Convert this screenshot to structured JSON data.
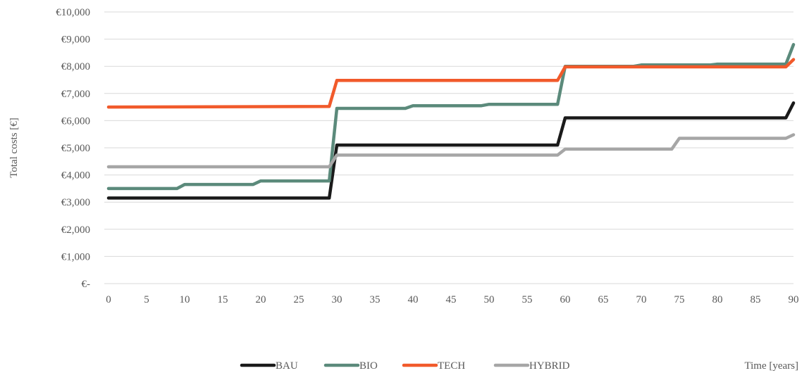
{
  "chart_data": {
    "type": "line",
    "ylabel": "Total costs [€]",
    "xlabel": "Time [years]",
    "xlim": [
      0,
      90
    ],
    "ylim": [
      0,
      10000
    ],
    "grid": true,
    "legend_position": "bottom",
    "x_ticks": [
      "0",
      "5",
      "10",
      "15",
      "20",
      "25",
      "30",
      "35",
      "40",
      "45",
      "50",
      "55",
      "60",
      "65",
      "70",
      "75",
      "80",
      "85",
      "90"
    ],
    "y_ticks": [
      "€-",
      "€1,000",
      "€2,000",
      "€3,000",
      "€4,000",
      "€5,000",
      "€6,000",
      "€7,000",
      "€8,000",
      "€9,000",
      "€10,000"
    ],
    "series": [
      {
        "name": "BAU",
        "color": "#1a1a1a",
        "points": [
          [
            0,
            3150
          ],
          [
            29,
            3150
          ],
          [
            30,
            5100
          ],
          [
            59,
            5100
          ],
          [
            60,
            6100
          ],
          [
            89,
            6100
          ],
          [
            90,
            6650
          ]
        ]
      },
      {
        "name": "BIO",
        "color": "#5b8a7b",
        "points": [
          [
            0,
            3500
          ],
          [
            9,
            3500
          ],
          [
            10,
            3650
          ],
          [
            19,
            3650
          ],
          [
            20,
            3780
          ],
          [
            29,
            3780
          ],
          [
            30,
            6450
          ],
          [
            39,
            6450
          ],
          [
            40,
            6550
          ],
          [
            49,
            6550
          ],
          [
            50,
            6600
          ],
          [
            59,
            6600
          ],
          [
            60,
            8000
          ],
          [
            69,
            8000
          ],
          [
            70,
            8050
          ],
          [
            79,
            8050
          ],
          [
            80,
            8080
          ],
          [
            89,
            8080
          ],
          [
            90,
            8800
          ]
        ]
      },
      {
        "name": "TECH",
        "color": "#f15a2b",
        "points": [
          [
            0,
            6500
          ],
          [
            29,
            6520
          ],
          [
            30,
            7480
          ],
          [
            59,
            7480
          ],
          [
            60,
            7980
          ],
          [
            89,
            7980
          ],
          [
            90,
            8250
          ]
        ]
      },
      {
        "name": "HYBRID",
        "color": "#a6a6a6",
        "points": [
          [
            0,
            4300
          ],
          [
            29,
            4300
          ],
          [
            30,
            4730
          ],
          [
            59,
            4730
          ],
          [
            60,
            4950
          ],
          [
            74,
            4950
          ],
          [
            75,
            5350
          ],
          [
            89,
            5350
          ],
          [
            90,
            5480
          ]
        ]
      }
    ]
  }
}
